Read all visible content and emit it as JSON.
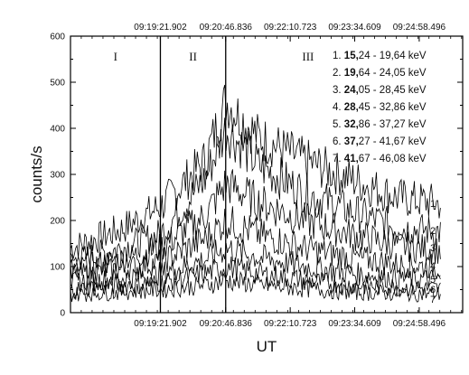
{
  "chart_data": {
    "type": "line",
    "xlabel": "UT",
    "ylabel": "counts/s",
    "ylim": [
      0,
      600
    ],
    "yticks": [
      0,
      100,
      200,
      300,
      400,
      500,
      600
    ],
    "xlim_seconds": [
      1045,
      1159
    ],
    "xticks": [
      {
        "label": "09:19:21.902",
        "t": 1161.902
      },
      {
        "label": "09:20:46.836",
        "t": 1246.836
      },
      {
        "label": "09:22:10.723",
        "t": 1330.723
      },
      {
        "label": "09:23:34.609",
        "t": 1414.609
      },
      {
        "label": "09:24:58.496",
        "t": 1498.496
      }
    ],
    "time_range": [
      "09:17:25",
      "09:25:55"
    ],
    "regions": [
      {
        "label": "I"
      },
      {
        "label": "II"
      },
      {
        "label": "III"
      }
    ],
    "boundaries": [
      "09:19:21.902",
      "09:20:46.836"
    ],
    "legend": [
      {
        "num": "1.",
        "bold": "15,",
        "rest": "24 - 19,64 keV"
      },
      {
        "num": "2.",
        "bold": "19,",
        "rest": "64 - 24,05 keV"
      },
      {
        "num": "3.",
        "bold": "24,",
        "rest": "05 - 28,45 keV"
      },
      {
        "num": "4.",
        "bold": "28,",
        "rest": "45 - 32,86 keV"
      },
      {
        "num": "5.",
        "bold": "32,",
        "rest": "86 - 37,27 keV"
      },
      {
        "num": "6.",
        "bold": "37,",
        "rest": "27 - 41,67 keV"
      },
      {
        "num": "7.",
        "bold": "41,",
        "rest": "67 - 46,08 keV"
      }
    ],
    "series": [
      {
        "name": "1",
        "t": [
          "09:17:25",
          "09:18:30",
          "09:19:22",
          "09:20:20",
          "09:20:47",
          "09:21:30",
          "09:22:30",
          "09:23:30",
          "09:24:30",
          "09:25:55"
        ],
        "values": [
          140,
          180,
          230,
          330,
          460,
          380,
          330,
          290,
          250,
          230
        ]
      },
      {
        "name": "2",
        "t": [
          "09:17:25",
          "09:18:30",
          "09:19:22",
          "09:20:20",
          "09:20:47",
          "09:21:30",
          "09:22:30",
          "09:23:30",
          "09:24:30",
          "09:25:55"
        ],
        "values": [
          110,
          140,
          170,
          290,
          400,
          320,
          260,
          220,
          185,
          170
        ]
      },
      {
        "name": "3",
        "t": [
          "09:17:25",
          "09:18:30",
          "09:19:22",
          "09:20:20",
          "09:20:47",
          "09:21:30",
          "09:22:30",
          "09:23:30",
          "09:24:30",
          "09:25:55"
        ],
        "values": [
          95,
          115,
          140,
          210,
          280,
          240,
          200,
          170,
          145,
          130
        ]
      },
      {
        "name": "4",
        "t": [
          "09:17:25",
          "09:18:30",
          "09:19:22",
          "09:20:20",
          "09:20:47",
          "09:21:30",
          "09:22:30",
          "09:23:30",
          "09:24:30",
          "09:25:55"
        ],
        "values": [
          80,
          95,
          110,
          160,
          200,
          170,
          140,
          120,
          105,
          95
        ]
      },
      {
        "name": "5",
        "t": [
          "09:17:25",
          "09:18:30",
          "09:19:22",
          "09:20:20",
          "09:20:47",
          "09:21:30",
          "09:22:30",
          "09:23:30",
          "09:24:30",
          "09:25:55"
        ],
        "values": [
          65,
          75,
          85,
          115,
          140,
          120,
          100,
          85,
          75,
          70
        ]
      },
      {
        "name": "6",
        "t": [
          "09:17:25",
          "09:18:30",
          "09:19:22",
          "09:20:20",
          "09:20:47",
          "09:21:30",
          "09:22:30",
          "09:23:30",
          "09:24:30",
          "09:25:55"
        ],
        "values": [
          50,
          60,
          65,
          85,
          100,
          85,
          70,
          60,
          55,
          50
        ]
      },
      {
        "name": "7",
        "t": [
          "09:17:25",
          "09:18:30",
          "09:19:22",
          "09:20:20",
          "09:20:47",
          "09:21:30",
          "09:22:30",
          "09:23:30",
          "09:24:30",
          "09:25:55"
        ],
        "values": [
          40,
          45,
          50,
          60,
          70,
          60,
          52,
          45,
          42,
          40
        ]
      }
    ],
    "grid": false,
    "legend_placement": "top-right"
  }
}
